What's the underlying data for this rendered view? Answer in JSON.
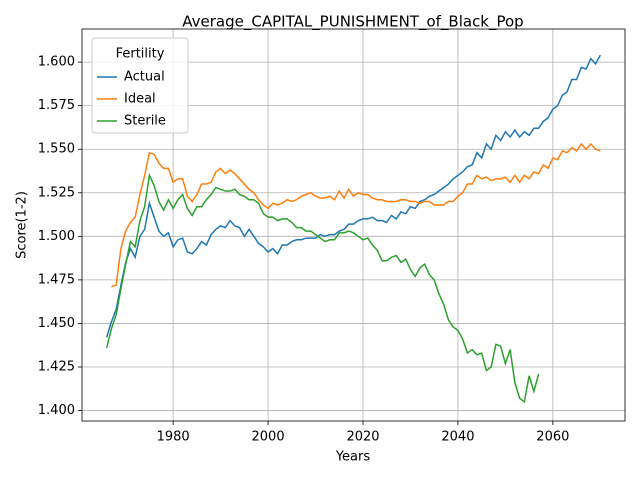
{
  "chart_data": {
    "type": "line",
    "title": "Average_CAPITAL_PUNISHMENT_of_Black_Pop",
    "xlabel": "Years",
    "ylabel": "Score(1-2)",
    "legend_title": "Fertility",
    "legend_loc": "upper left",
    "grid": true,
    "xlim": [
      1960.8,
      2075.2
    ],
    "ylim": [
      1.394,
      1.619
    ],
    "xticks": [
      1980,
      2000,
      2020,
      2040,
      2060
    ],
    "yticks": [
      {
        "value": 1.4,
        "label": "1.400"
      },
      {
        "value": 1.425,
        "label": "1.425"
      },
      {
        "value": 1.45,
        "label": "1.450"
      },
      {
        "value": 1.475,
        "label": "1.475"
      },
      {
        "value": 1.5,
        "label": "1.500"
      },
      {
        "value": 1.525,
        "label": "1.525"
      },
      {
        "value": 1.55,
        "label": "1.550"
      },
      {
        "value": 1.575,
        "label": "1.575"
      },
      {
        "value": 1.6,
        "label": "1.600"
      }
    ],
    "x": [
      1966,
      1967,
      1968,
      1969,
      1970,
      1971,
      1972,
      1973,
      1974,
      1975,
      1976,
      1977,
      1978,
      1979,
      1980,
      1981,
      1982,
      1983,
      1984,
      1985,
      1986,
      1987,
      1988,
      1989,
      1990,
      1991,
      1992,
      1993,
      1994,
      1995,
      1996,
      1997,
      1998,
      1999,
      2000,
      2001,
      2002,
      2003,
      2004,
      2005,
      2006,
      2007,
      2008,
      2009,
      2010,
      2011,
      2012,
      2013,
      2014,
      2015,
      2016,
      2017,
      2018,
      2019,
      2020,
      2021,
      2022,
      2023,
      2024,
      2025,
      2026,
      2027,
      2028,
      2029,
      2030,
      2031,
      2032,
      2033,
      2034,
      2035,
      2036,
      2037,
      2038,
      2039,
      2040,
      2041,
      2042,
      2043,
      2044,
      2045,
      2046,
      2047,
      2048,
      2049,
      2050,
      2051,
      2052,
      2053,
      2054,
      2055,
      2056,
      2057,
      2058,
      2059,
      2060,
      2061,
      2062,
      2063,
      2064,
      2065,
      2066,
      2067,
      2068,
      2069,
      2070
    ],
    "series": [
      {
        "name": "Actual",
        "color": "#1f77b4",
        "values": [
          1.442,
          1.451,
          1.458,
          1.472,
          1.485,
          1.493,
          1.488,
          1.5,
          1.504,
          1.519,
          1.511,
          1.503,
          1.5,
          1.502,
          1.494,
          1.498,
          1.499,
          1.491,
          1.49,
          1.493,
          1.497,
          1.495,
          1.501,
          1.504,
          1.506,
          1.505,
          1.509,
          1.506,
          1.505,
          1.5,
          1.504,
          1.5,
          1.496,
          1.494,
          1.491,
          1.493,
          1.49,
          1.495,
          1.495,
          1.497,
          1.498,
          1.498,
          1.499,
          1.499,
          1.499,
          1.501,
          1.5,
          1.501,
          1.501,
          1.503,
          1.504,
          1.507,
          1.507,
          1.509,
          1.51,
          1.51,
          1.511,
          1.509,
          1.509,
          1.508,
          1.512,
          1.51,
          1.514,
          1.513,
          1.517,
          1.516,
          1.52,
          1.521,
          1.523,
          1.524,
          1.526,
          1.528,
          1.53,
          1.533,
          1.535,
          1.537,
          1.54,
          1.541,
          1.548,
          1.545,
          1.553,
          1.55,
          1.558,
          1.555,
          1.56,
          1.557,
          1.561,
          1.557,
          1.56,
          1.558,
          1.562,
          1.562,
          1.566,
          1.568,
          1.573,
          1.575,
          1.581,
          1.583,
          1.59,
          1.59,
          1.597,
          1.596,
          1.602,
          1.599,
          1.604
        ]
      },
      {
        "name": "Ideal",
        "color": "#ff7f0e",
        "values": [
          null,
          1.471,
          1.472,
          1.493,
          1.503,
          1.508,
          1.511,
          1.524,
          1.535,
          1.548,
          1.547,
          1.542,
          1.539,
          1.539,
          1.531,
          1.533,
          1.533,
          1.523,
          1.52,
          1.524,
          1.53,
          1.53,
          1.531,
          1.537,
          1.539,
          1.536,
          1.538,
          1.536,
          1.533,
          1.53,
          1.527,
          1.525,
          1.521,
          1.518,
          1.516,
          1.519,
          1.518,
          1.519,
          1.521,
          1.52,
          1.521,
          1.523,
          1.524,
          1.525,
          1.523,
          1.522,
          1.522,
          1.523,
          1.521,
          1.526,
          1.522,
          1.527,
          1.523,
          1.525,
          1.524,
          1.524,
          1.522,
          1.521,
          1.521,
          1.52,
          1.52,
          1.52,
          1.521,
          1.521,
          1.52,
          1.52,
          1.519,
          1.52,
          1.52,
          1.518,
          1.518,
          1.518,
          1.52,
          1.52,
          1.523,
          1.525,
          1.53,
          1.53,
          1.535,
          1.533,
          1.534,
          1.532,
          1.533,
          1.533,
          1.534,
          1.531,
          1.535,
          1.531,
          1.535,
          1.533,
          1.537,
          1.536,
          1.541,
          1.539,
          1.545,
          1.544,
          1.549,
          1.548,
          1.551,
          1.549,
          1.553,
          1.55,
          1.553,
          1.55,
          1.549
        ]
      },
      {
        "name": "Sterile",
        "color": "#2ca02c",
        "values": [
          1.436,
          1.447,
          1.455,
          1.47,
          1.484,
          1.497,
          1.494,
          1.509,
          1.517,
          1.535,
          1.529,
          1.52,
          1.515,
          1.521,
          1.516,
          1.521,
          1.524,
          1.516,
          1.512,
          1.517,
          1.517,
          1.521,
          1.524,
          1.528,
          1.527,
          1.526,
          1.526,
          1.527,
          1.524,
          1.523,
          1.521,
          1.521,
          1.519,
          1.513,
          1.511,
          1.511,
          1.509,
          1.51,
          1.51,
          1.508,
          1.505,
          1.505,
          1.503,
          1.503,
          1.501,
          1.499,
          1.497,
          1.498,
          1.498,
          1.502,
          1.502,
          1.503,
          1.502,
          1.5,
          1.498,
          1.499,
          1.495,
          1.492,
          1.486,
          1.486,
          1.488,
          1.489,
          1.485,
          1.487,
          1.481,
          1.477,
          1.482,
          1.484,
          1.478,
          1.475,
          1.467,
          1.461,
          1.452,
          1.448,
          1.446,
          1.441,
          1.433,
          1.435,
          1.432,
          1.433,
          1.423,
          1.425,
          1.438,
          1.437,
          1.427,
          1.435,
          1.416,
          1.407,
          1.405,
          1.42,
          1.411,
          1.421,
          null,
          null,
          null,
          null,
          null,
          null,
          null,
          null,
          null,
          null,
          null,
          null,
          null
        ]
      }
    ]
  }
}
